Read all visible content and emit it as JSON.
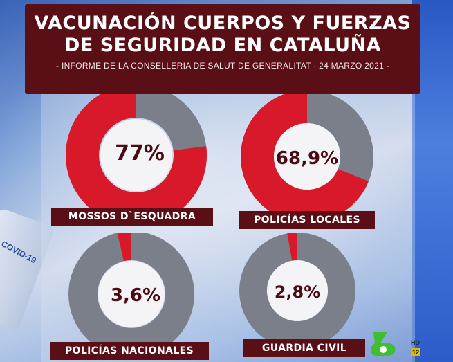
{
  "header": {
    "title_line1": "VACUNACIÓN CUERPOS Y FUERZAS",
    "title_line2": "DE SEGURIDAD EN CATALUÑA",
    "subtitle": "- INFORME DE LA CONSELLERIA DE SALUT DE GENERALITAT · 24 MARZO 2021 -"
  },
  "colors": {
    "vaccinated": "#d8192a",
    "remaining": "#7a7f8a",
    "label_bg": "#5a0f16",
    "hole": "#f4f4f6"
  },
  "chart_data": [
    {
      "type": "pie",
      "label": "MOSSOS D`ESQUADRA",
      "value": 77,
      "display": "77%"
    },
    {
      "type": "pie",
      "label": "POLICÍAS LOCALES",
      "value": 68.9,
      "display": "68,9%"
    },
    {
      "type": "pie",
      "label": "POLICÍAS NACIONALES",
      "value": 3.6,
      "display": "3,6%"
    },
    {
      "type": "pie",
      "label": "GUARDIA CIVIL",
      "value": 2.8,
      "display": "2,8%"
    }
  ],
  "vial": {
    "text": "COVID-19"
  },
  "logo": {
    "hd": "HD",
    "channel": "12",
    "icon": "lasexta-logo-icon"
  }
}
